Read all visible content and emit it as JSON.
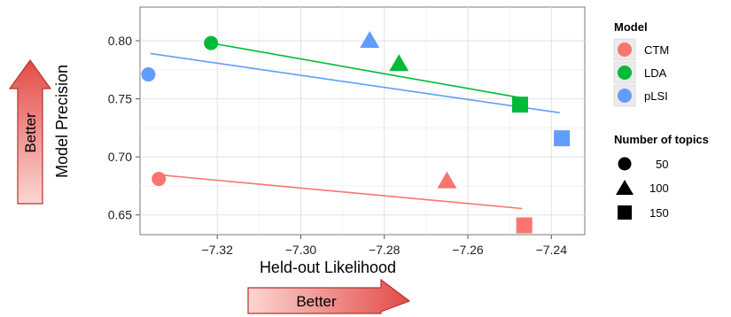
{
  "chart_data": {
    "type": "scatter",
    "xlabel": "Held-out Likelihood",
    "ylabel": "Model Precision",
    "xlim": [
      -7.3385,
      -7.232
    ],
    "ylim": [
      0.633,
      0.829
    ],
    "xticks": [
      -7.32,
      -7.3,
      -7.28,
      -7.26,
      -7.24
    ],
    "xtick_labels": [
      "−7.32",
      "−7.30",
      "−7.28",
      "−7.26",
      "−7.24"
    ],
    "yticks": [
      0.65,
      0.7,
      0.75,
      0.8
    ],
    "ytick_labels": [
      "0.65",
      "0.70",
      "0.75",
      "0.80"
    ],
    "grid": true,
    "legend_placement": "right",
    "series": [
      {
        "name": "CTM",
        "color": "#F8766D",
        "points": [
          {
            "topics": 50,
            "x": -7.334,
            "y": 0.681
          },
          {
            "topics": 100,
            "x": -7.265,
            "y": 0.679
          },
          {
            "topics": 150,
            "x": -7.2465,
            "y": 0.641
          }
        ],
        "trend": [
          [
            -7.334,
            0.6845
          ],
          [
            -7.247,
            0.6555
          ]
        ]
      },
      {
        "name": "LDA",
        "color": "#00BA38",
        "points": [
          {
            "topics": 50,
            "x": -7.3215,
            "y": 0.798
          },
          {
            "topics": 100,
            "x": -7.2765,
            "y": 0.78
          },
          {
            "topics": 150,
            "x": -7.2475,
            "y": 0.745
          }
        ],
        "trend": [
          [
            -7.3215,
            0.798
          ],
          [
            -7.2475,
            0.751
          ]
        ]
      },
      {
        "name": "pLSI",
        "color": "#619CFF",
        "points": [
          {
            "topics": 50,
            "x": -7.3365,
            "y": 0.771
          },
          {
            "topics": 100,
            "x": -7.2835,
            "y": 0.8
          },
          {
            "topics": 150,
            "x": -7.2375,
            "y": 0.716
          }
        ],
        "trend": [
          [
            -7.336,
            0.789
          ],
          [
            -7.238,
            0.738
          ]
        ]
      }
    ],
    "legend": {
      "color_title": "Model",
      "color_entries": [
        "CTM",
        "LDA",
        "pLSI"
      ],
      "shape_title": "Number of topics",
      "shape_entries": [
        {
          "label": "50",
          "shape": "circle"
        },
        {
          "label": "100",
          "shape": "triangle"
        },
        {
          "label": "150",
          "shape": "square"
        }
      ]
    },
    "annotations": {
      "x_arrow_label": "Better",
      "y_arrow_label": "Better",
      "arrow_color": "#E8625F"
    }
  }
}
